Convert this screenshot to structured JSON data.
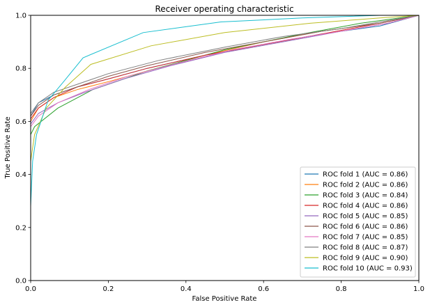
{
  "chart_data": {
    "type": "line",
    "title": "Receiver operating characteristic",
    "xlabel": "False Positive Rate",
    "ylabel": "True Positive Rate",
    "xlim": [
      0,
      1
    ],
    "ylim": [
      0,
      1
    ],
    "xticks": [
      "0.0",
      "0.2",
      "0.4",
      "0.6",
      "0.8",
      "1.0"
    ],
    "yticks": [
      "0.0",
      "0.2",
      "0.4",
      "0.6",
      "0.8",
      "1.0"
    ],
    "grid": false,
    "legend_position": "lower-right",
    "series": [
      {
        "name": "ROC fold 1 (AUC = 0.86)",
        "color": "#1f77b4",
        "x": [
          0,
          0,
          0.02,
          0.06,
          0.12,
          0.2,
          0.3,
          0.45,
          0.6,
          0.75,
          0.9,
          1
        ],
        "y": [
          0,
          0.62,
          0.67,
          0.7,
          0.73,
          0.76,
          0.8,
          0.85,
          0.89,
          0.93,
          0.96,
          1
        ]
      },
      {
        "name": "ROC fold 2 (AUC = 0.86)",
        "color": "#ff7f0e",
        "x": [
          0,
          0,
          0.02,
          0.06,
          0.12,
          0.2,
          0.3,
          0.45,
          0.6,
          0.75,
          0.9,
          1
        ],
        "y": [
          0,
          0.6,
          0.65,
          0.69,
          0.72,
          0.75,
          0.79,
          0.85,
          0.9,
          0.94,
          0.97,
          1
        ]
      },
      {
        "name": "ROC fold 3 (AUC = 0.84)",
        "color": "#2ca02c",
        "x": [
          0,
          0,
          0.01,
          0.07,
          0.16,
          0.3,
          0.5,
          0.7,
          0.85,
          1
        ],
        "y": [
          0,
          0.55,
          0.58,
          0.65,
          0.72,
          0.79,
          0.87,
          0.93,
          0.97,
          1
        ]
      },
      {
        "name": "ROC fold 4 (AUC = 0.86)",
        "color": "#d62728",
        "x": [
          0,
          0,
          0.02,
          0.06,
          0.12,
          0.2,
          0.3,
          0.45,
          0.6,
          0.75,
          0.9,
          1
        ],
        "y": [
          0,
          0.61,
          0.65,
          0.69,
          0.73,
          0.76,
          0.8,
          0.85,
          0.89,
          0.93,
          0.97,
          1
        ]
      },
      {
        "name": "ROC fold 5 (AUC = 0.85)",
        "color": "#9467bd",
        "x": [
          0,
          0,
          0.02,
          0.07,
          0.14,
          0.24,
          0.36,
          0.5,
          0.65,
          0.8,
          0.92,
          1
        ],
        "y": [
          0,
          0.59,
          0.63,
          0.67,
          0.71,
          0.76,
          0.81,
          0.86,
          0.9,
          0.94,
          0.97,
          1
        ]
      },
      {
        "name": "ROC fold 6 (AUC = 0.86)",
        "color": "#8c564b",
        "x": [
          0,
          0,
          0.02,
          0.06,
          0.12,
          0.2,
          0.3,
          0.45,
          0.6,
          0.75,
          0.9,
          1
        ],
        "y": [
          0,
          0.62,
          0.66,
          0.7,
          0.73,
          0.77,
          0.81,
          0.86,
          0.9,
          0.94,
          0.97,
          1
        ]
      },
      {
        "name": "ROC fold 7 (AUC = 0.85)",
        "color": "#e377c2",
        "x": [
          0,
          0,
          0.02,
          0.07,
          0.15,
          0.25,
          0.38,
          0.52,
          0.67,
          0.8,
          0.92,
          1
        ],
        "y": [
          0,
          0.58,
          0.62,
          0.67,
          0.72,
          0.77,
          0.82,
          0.87,
          0.91,
          0.94,
          0.97,
          1
        ]
      },
      {
        "name": "ROC fold 8 (AUC = 0.87)",
        "color": "#7f7f7f",
        "x": [
          0,
          0,
          0.02,
          0.06,
          0.12,
          0.2,
          0.33,
          0.5,
          0.65,
          0.8,
          0.92,
          1
        ],
        "y": [
          0,
          0.63,
          0.67,
          0.71,
          0.74,
          0.78,
          0.83,
          0.88,
          0.92,
          0.95,
          0.98,
          1
        ]
      },
      {
        "name": "ROC fold 9 (AUC = 0.90)",
        "color": "#bcbd22",
        "x": [
          0,
          0,
          0.01,
          0.04,
          0.09,
          0.155,
          0.31,
          0.5,
          0.72,
          0.9,
          1
        ],
        "y": [
          0,
          0.45,
          0.55,
          0.65,
          0.73,
          0.815,
          0.885,
          0.935,
          0.97,
          0.99,
          1
        ]
      },
      {
        "name": "ROC fold 10 (AUC = 0.93)",
        "color": "#17becf",
        "x": [
          0,
          0,
          0.005,
          0.015,
          0.045,
          0.085,
          0.135,
          0.29,
          0.49,
          0.7,
          0.9,
          1
        ],
        "y": [
          0,
          0.28,
          0.45,
          0.55,
          0.68,
          0.75,
          0.84,
          0.935,
          0.975,
          0.99,
          1,
          1
        ]
      }
    ]
  }
}
